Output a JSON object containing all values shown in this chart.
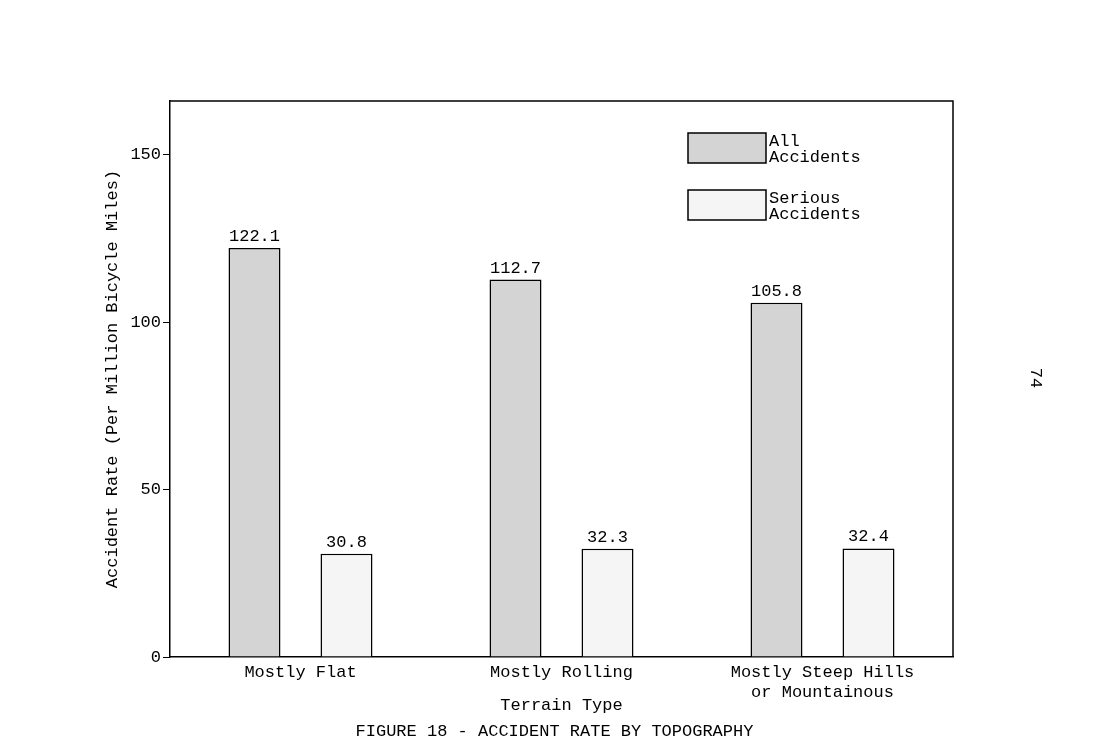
{
  "chart_data": {
    "type": "bar",
    "categories": [
      "Mostly Flat",
      "Mostly Rolling",
      "Mostly Steep Hills or Mountainous"
    ],
    "series": [
      {
        "name": "All Accidents",
        "color": "#d4d4d4",
        "values": [
          122.1,
          112.7,
          105.8
        ]
      },
      {
        "name": "Serious Accidents",
        "color": "#f5f5f5",
        "values": [
          30.8,
          32.3,
          32.4
        ]
      }
    ],
    "xlabel": "Terrain Type",
    "ylabel": "Accident Rate (Per Million Bicycle Miles)",
    "ylim": [
      0,
      166
    ],
    "yticks": [
      0,
      50,
      100,
      150
    ],
    "data_labels": true,
    "legend": "top right",
    "grid": false,
    "annotations": [
      "FIGURE 18 - ACCIDENT RATE BY TOPOGRAPHY",
      "74"
    ]
  }
}
